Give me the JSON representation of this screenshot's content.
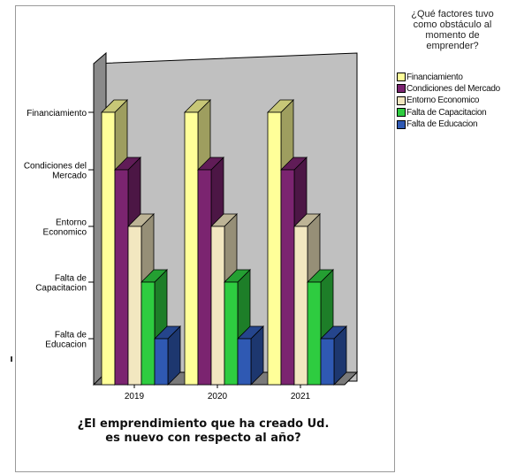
{
  "chart_data": {
    "type": "bar",
    "categories": [
      "2019",
      "2020",
      "2021"
    ],
    "category_axis": [
      "Financiamiento",
      "Condiciones del Mercado",
      "Entorno Economico",
      "Falta de Capacitacion",
      "Falta de Educacion"
    ],
    "series": [
      {
        "name": "Financiamiento",
        "values": [
          5,
          5,
          5
        ],
        "color": "#ffff99"
      },
      {
        "name": "Condiciones del Mercado",
        "values": [
          4,
          4,
          4
        ],
        "color": "#7b2470"
      },
      {
        "name": "Entorno Economico",
        "values": [
          3,
          3,
          3
        ],
        "color": "#f2e7c0"
      },
      {
        "name": "Falta de Capacitacion",
        "values": [
          2,
          2,
          2
        ],
        "color": "#2ecc40"
      },
      {
        "name": "Falta de Educacion",
        "values": [
          1,
          1,
          1
        ],
        "color": "#2f59b3"
      }
    ],
    "yticks": [
      "Financiamiento",
      "Condiciones del\nMercado",
      "Entorno\nEconomico",
      "Falta de\nCapacitacion",
      "Falta de\nEducacion"
    ],
    "xlabel": "¿El emprendimiento que ha creado Ud.\nes nuevo con respecto al año?",
    "legend": {
      "title": "¿Qué factores tuvo\ncomo obstáculo al\nmomento de\nemprender?",
      "placement": "right"
    },
    "ylim": [
      0,
      5
    ],
    "grid": false,
    "background": "#c0c0c0"
  }
}
